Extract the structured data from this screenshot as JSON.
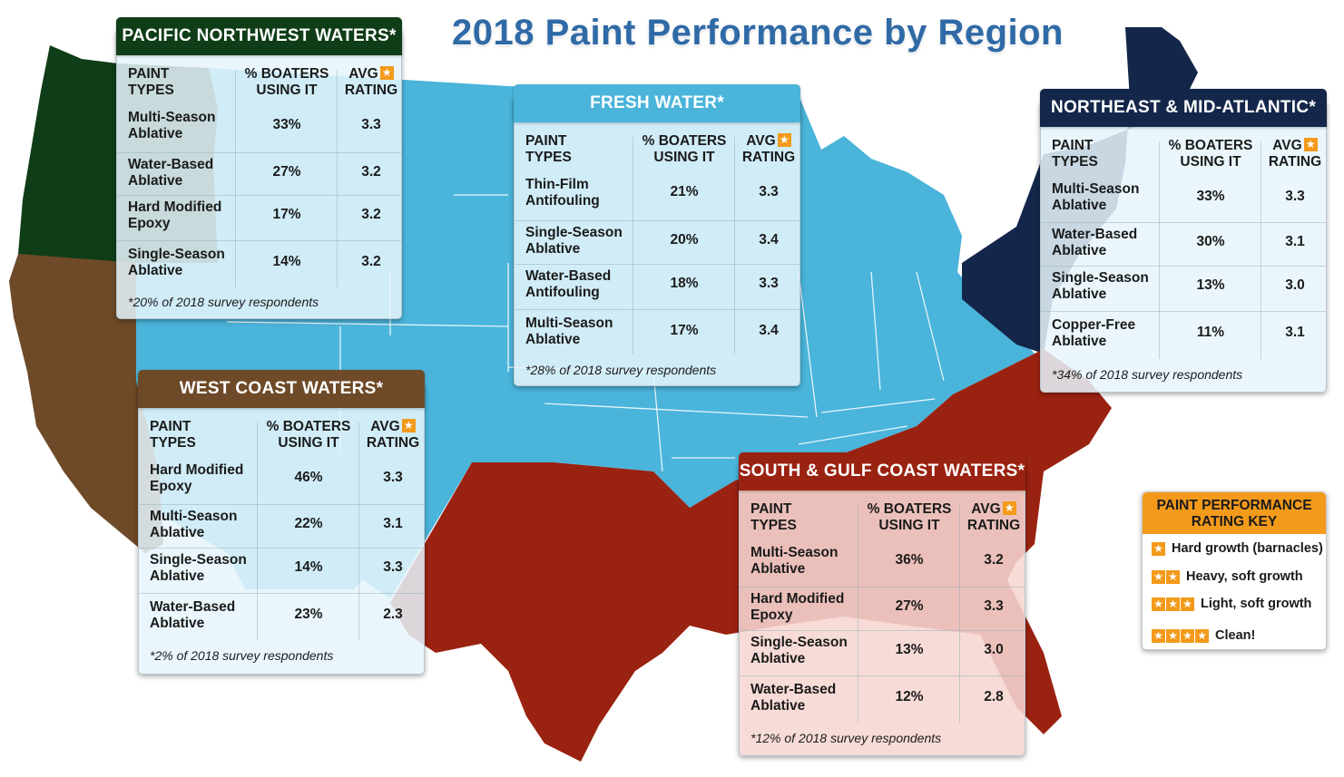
{
  "title": "2018 Paint Performance by Region",
  "colors": {
    "pacific_northwest": "#0f3d17",
    "west_coast": "#6e4a28",
    "fresh_water": "#4ab4da",
    "northeast": "#14274a",
    "south_gulf": "#9a2211",
    "accent_orange": "#f39a1b"
  },
  "column_headers": {
    "paint_types": "PAINT TYPES",
    "boaters": "% BOATERS USING IT",
    "avg": "AVG",
    "rating": "RATING",
    "star_icon": "star-icon"
  },
  "regions": {
    "pacific_northwest": {
      "name": "PACIFIC NORTHWEST WATERS*",
      "rows": [
        {
          "type": "Multi-Season Ablative",
          "percent": "33%",
          "rating": "3.3"
        },
        {
          "type": "Water-Based Ablative",
          "percent": "27%",
          "rating": "3.2"
        },
        {
          "type": "Hard Modified Epoxy",
          "percent": "17%",
          "rating": "3.2"
        },
        {
          "type": "Single-Season Ablative",
          "percent": "14%",
          "rating": "3.2"
        }
      ],
      "footnote": "*20% of 2018 survey respondents"
    },
    "fresh_water": {
      "name": "FRESH WATER*",
      "rows": [
        {
          "type": "Thin-Film Antifouling",
          "percent": "21%",
          "rating": "3.3"
        },
        {
          "type": "Single-Season Ablative",
          "percent": "20%",
          "rating": "3.4"
        },
        {
          "type": "Water-Based Antifouling",
          "percent": "18%",
          "rating": "3.3"
        },
        {
          "type": "Multi-Season Ablative",
          "percent": "17%",
          "rating": "3.4"
        }
      ],
      "footnote": "*28% of 2018 survey respondents"
    },
    "northeast": {
      "name": "NORTHEAST & MID-ATLANTIC*",
      "rows": [
        {
          "type": "Multi-Season Ablative",
          "percent": "33%",
          "rating": "3.3"
        },
        {
          "type": "Water-Based Ablative",
          "percent": "30%",
          "rating": "3.1"
        },
        {
          "type": "Single-Season Ablative",
          "percent": "13%",
          "rating": "3.0"
        },
        {
          "type": "Copper-Free Ablative",
          "percent": "11%",
          "rating": "3.1"
        }
      ],
      "footnote": "*34% of 2018 survey respondents"
    },
    "west_coast": {
      "name": "WEST COAST WATERS*",
      "rows": [
        {
          "type": "Hard Modified Epoxy",
          "percent": "46%",
          "rating": "3.3"
        },
        {
          "type": "Multi-Season Ablative",
          "percent": "22%",
          "rating": "3.1"
        },
        {
          "type": "Single-Season Ablative",
          "percent": "14%",
          "rating": "3.3"
        },
        {
          "type": "Water-Based Ablative",
          "percent": "23%",
          "rating": "2.3"
        }
      ],
      "footnote": "*2% of 2018 survey respondents"
    },
    "south_gulf": {
      "name": "SOUTH & GULF COAST WATERS*",
      "rows": [
        {
          "type": "Multi-Season Ablative",
          "percent": "36%",
          "rating": "3.2"
        },
        {
          "type": "Hard Modified Epoxy",
          "percent": "27%",
          "rating": "3.3"
        },
        {
          "type": "Single-Season Ablative",
          "percent": "13%",
          "rating": "3.0"
        },
        {
          "type": "Water-Based Ablative",
          "percent": "12%",
          "rating": "2.8"
        }
      ],
      "footnote": "*12% of 2018 survey respondents"
    }
  },
  "rating_key": {
    "title": "PAINT PERFORMANCE RATING KEY",
    "items": [
      {
        "stars": 1,
        "label": "Hard growth (barnacles)"
      },
      {
        "stars": 2,
        "label": "Heavy, soft growth"
      },
      {
        "stars": 3,
        "label": "Light, soft growth"
      },
      {
        "stars": 4,
        "label": "Clean!"
      }
    ]
  }
}
